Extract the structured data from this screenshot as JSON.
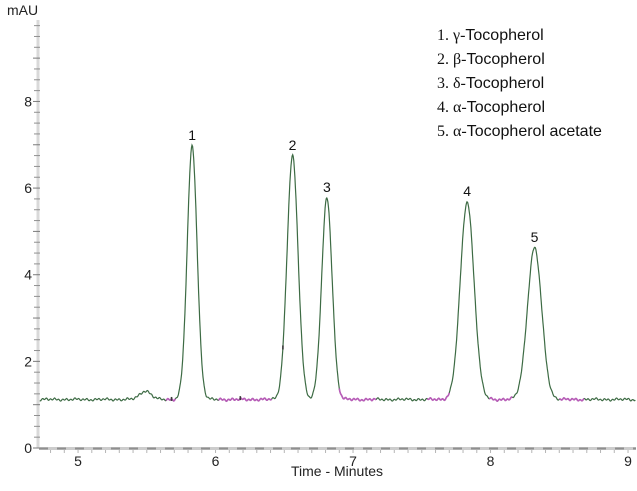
{
  "labels": {
    "y_axis_unit": "mAU",
    "x_axis_title": "Time - Minutes"
  },
  "colors": {
    "trace": "#3d6b44",
    "integration_segment": "#b85cb8",
    "axis_light": "#cccccc",
    "axis_dark": "#8f8f8f",
    "tick": "#7a7a7a",
    "event_mark": "#3a3a3a",
    "text": "#1a1a1a",
    "background": "#ffffff"
  },
  "chart_data": {
    "type": "line",
    "title": "",
    "xlabel": "Time - Minutes",
    "ylabel": "mAU",
    "xlim": [
      4.716,
      9.058
    ],
    "ylim": [
      0,
      9.88
    ],
    "x_ticks": [
      5,
      6,
      7,
      8,
      9
    ],
    "y_ticks": [
      0,
      2,
      4,
      6,
      8
    ],
    "x_minor_step": 0.1,
    "y_minor_step": 0.25,
    "grid": false,
    "legend_position": "top-right",
    "baseline_mAU": 1.12,
    "noise_amplitude_mAU": 0.035,
    "peaks": [
      {
        "label": "1",
        "compound": "γ-Tocopherol",
        "retention_time_min": 5.83,
        "apex_mAU": 6.97,
        "sigma_min": 0.036
      },
      {
        "label": "2",
        "compound": "β-Tocopherol",
        "retention_time_min": 6.56,
        "apex_mAU": 6.74,
        "sigma_min": 0.04
      },
      {
        "label": "3",
        "compound": "δ-Tocopherol",
        "retention_time_min": 6.81,
        "apex_mAU": 5.77,
        "sigma_min": 0.038
      },
      {
        "label": "4",
        "compound": "α-Tocopherol",
        "retention_time_min": 7.83,
        "apex_mAU": 5.68,
        "sigma_min": 0.05
      },
      {
        "label": "5",
        "compound": "α-Tocopherol acetate",
        "retention_time_min": 8.32,
        "apex_mAU": 4.62,
        "sigma_min": 0.052
      }
    ],
    "baseline_disturbance": {
      "retention_time_min": 5.49,
      "apex_mAU": 1.32,
      "sigma_min": 0.04
    },
    "integration_segments_min": [
      [
        5.64,
        5.71
      ],
      [
        6.02,
        6.41
      ],
      [
        6.9,
        7.17
      ],
      [
        7.54,
        7.7
      ],
      [
        7.99,
        8.16
      ],
      [
        8.5,
        8.68
      ]
    ],
    "event_marks_min": [
      5.68,
      6.18,
      6.49
    ]
  }
}
